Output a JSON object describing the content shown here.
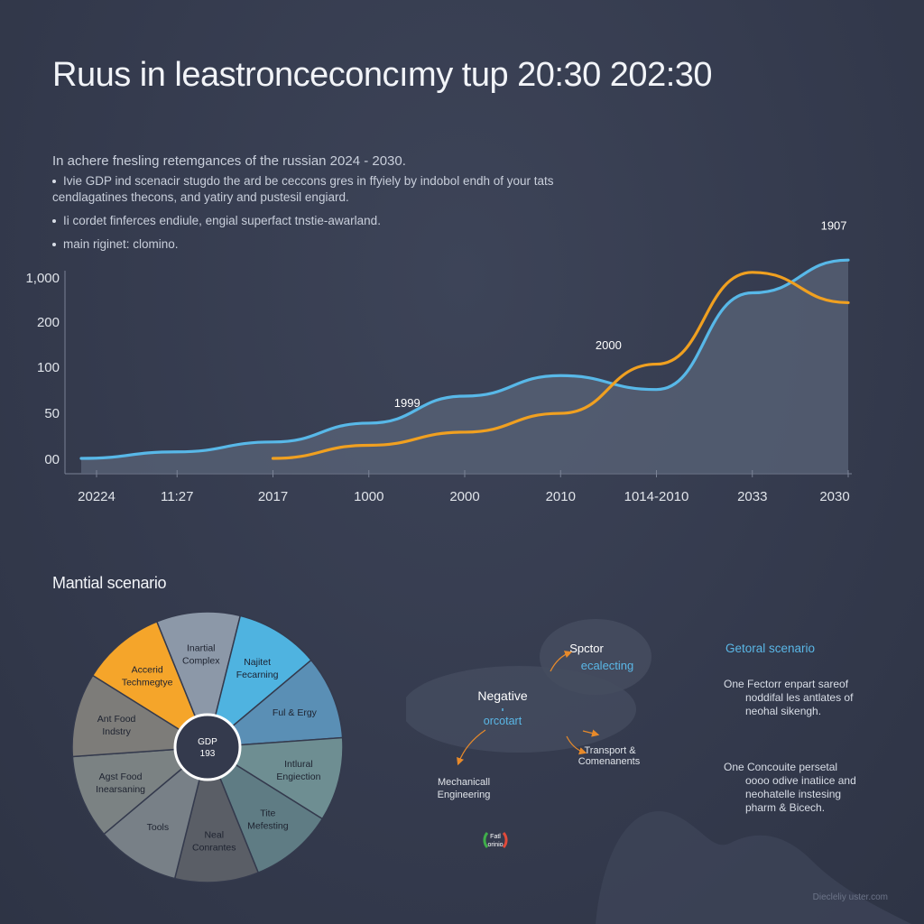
{
  "title": "Ruus in leastronceconcımy tup 20:30 202:30",
  "intro": {
    "lead": "In achere fnesling retemgances of the russian 2024 - 2030.",
    "bullets": [
      "Ivie GDP ind scenacir stugdo the ard be ceccons gres in ffyiely by indobol endh of your tats cendlagatines thecons, and yatiry and pustesil engiard.",
      "Ii cordet finferces endiule, engial superfact tnstie-awarland.",
      "main riginet: clomino."
    ]
  },
  "chart_data": {
    "type": "area",
    "y_tick_labels": [
      "00",
      "50",
      "100",
      "200",
      "1,000"
    ],
    "x_tick_labels": [
      "20224",
      "11:27",
      "2017",
      "1000",
      "2000",
      "2010",
      "1014-2010",
      "2033",
      "2030"
    ],
    "series": [
      {
        "color": "#58b8e8",
        "fill": true,
        "values": [
          0,
          8,
          20,
          43,
          76,
          101,
          84,
          202,
          242
        ]
      },
      {
        "color": "#f0a020",
        "fill": false,
        "values": [
          null,
          null,
          0,
          16,
          32,
          55,
          115,
          227,
          190
        ]
      }
    ],
    "annotations": [
      {
        "text": "1999",
        "x": 3.4,
        "y": 63
      },
      {
        "text": "2000",
        "x": 5.5,
        "y": 133
      },
      {
        "text": "1907",
        "x": 7.85,
        "y": 279
      }
    ]
  },
  "scenario": {
    "title": "Mantial scenario",
    "center": {
      "line1": "GDP",
      "line2": "193"
    },
    "segments": [
      {
        "label": [
          "Inartial",
          "Complex"
        ],
        "color": "#8c98a8"
      },
      {
        "label": [
          "Najitet",
          "Fecarning"
        ],
        "color": "#4fb3e0"
      },
      {
        "label": [
          "Ful & Ergy"
        ],
        "color": "#5a8fb5"
      },
      {
        "label": [
          "Intlural",
          "Engiection"
        ],
        "color": "#6e8e92"
      },
      {
        "label": [
          "Tite",
          "Mefesting"
        ],
        "color": "#5f7c84"
      },
      {
        "label": [
          "Neal",
          "Conrantes"
        ],
        "color": "#5a5e66"
      },
      {
        "label": [
          "Tools"
        ],
        "color": "#788087"
      },
      {
        "label": [
          "Agst Food",
          "Inearsaning"
        ],
        "color": "#7b8283"
      },
      {
        "label": [
          "Ant Food",
          "Indstry"
        ],
        "color": "#7d7c79"
      },
      {
        "label": [
          "Accerid",
          "Techmegtye"
        ],
        "color": "#f5a52a"
      }
    ]
  },
  "network": {
    "top": {
      "line1": "Spctor",
      "line2": "ecalecting"
    },
    "negative": {
      "line1": "Negative",
      "line2": "orcotart"
    },
    "left_label": [
      "Mechanicall",
      "Engineering"
    ],
    "right_label": [
      "Transport &",
      "Comenanents"
    ],
    "badge": [
      "Fatl",
      "orinio"
    ]
  },
  "general": {
    "title": "Getoral scenario",
    "item1": [
      "One Fectorr enpart sareof",
      "noddifal les antlates of",
      "neohal sikengh."
    ],
    "item2": [
      "One Concouite persetal",
      "oooo odive inatiice and",
      "neohatelle instesing",
      "pharm & Bicech."
    ]
  },
  "credit": "Diecleliy uster.com"
}
